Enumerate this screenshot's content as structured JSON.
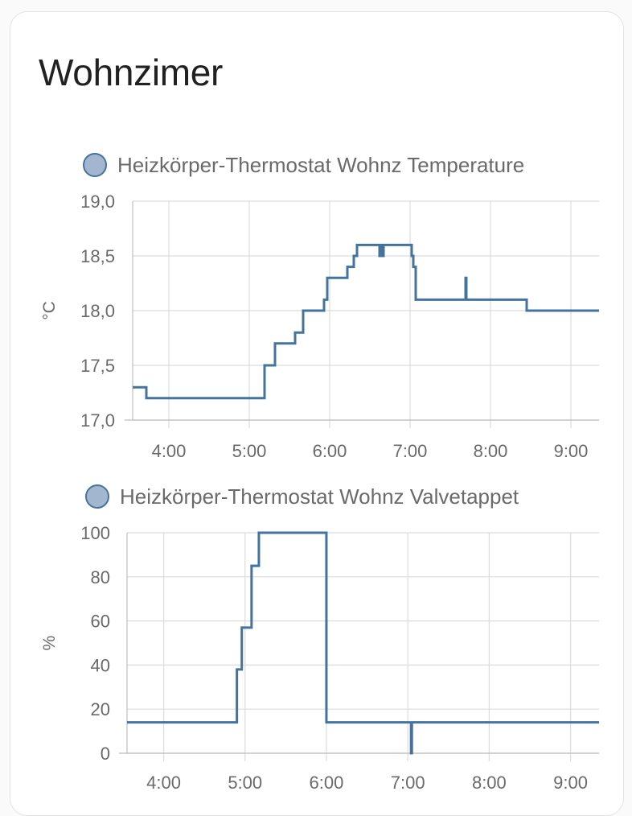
{
  "card": {
    "title": "Wohnzimer"
  },
  "colors": {
    "series": "#44739e",
    "legend_fill": "#a2b7cf",
    "grid": "#dcdcdc"
  },
  "chart_data": [
    {
      "type": "line",
      "step": true,
      "legend": "Heizkörper-Thermostat Wohnz Temperature",
      "ylabel": "°C",
      "ylim": [
        17.0,
        19.0
      ],
      "yticks": [
        17.0,
        17.5,
        18.0,
        18.5,
        19.0
      ],
      "ytick_labels": [
        "17,0",
        "17,5",
        "18,0",
        "18,5",
        "19,0"
      ],
      "xlim": [
        3.55,
        9.35
      ],
      "xticks": [
        4,
        5,
        6,
        7,
        8,
        9
      ],
      "xtick_labels": [
        "4:00",
        "5:00",
        "6:00",
        "7:00",
        "8:00",
        "9:00"
      ],
      "series": [
        {
          "x": [
            3.55,
            3.72,
            5.19,
            5.32,
            5.57,
            5.67,
            5.93,
            5.97,
            6.22,
            6.3,
            6.34,
            6.62,
            6.63,
            6.66,
            6.67,
            7.02,
            7.04,
            7.07,
            7.69,
            7.7,
            8.45,
            9.35
          ],
          "y": [
            17.3,
            17.2,
            17.5,
            17.7,
            17.8,
            18.0,
            18.1,
            18.3,
            18.4,
            18.5,
            18.6,
            18.5,
            18.6,
            18.5,
            18.6,
            18.5,
            18.4,
            18.1,
            18.3,
            18.1,
            18.0,
            18.0
          ]
        }
      ]
    },
    {
      "type": "line",
      "step": true,
      "legend": "Heizkörper-Thermostat Wohnz Valvetappet",
      "ylabel": "%",
      "ylim": [
        0,
        100
      ],
      "yticks": [
        0,
        20,
        40,
        60,
        80,
        100
      ],
      "ytick_labels": [
        "0",
        "20",
        "40",
        "60",
        "80",
        "100"
      ],
      "xlim": [
        3.55,
        9.35
      ],
      "xticks": [
        4,
        5,
        6,
        7,
        8,
        9
      ],
      "xtick_labels": [
        "4:00",
        "5:00",
        "6:00",
        "7:00",
        "8:00",
        "9:00"
      ],
      "series": [
        {
          "x": [
            3.55,
            4.9,
            4.96,
            5.08,
            5.17,
            6.0,
            7.04,
            7.05,
            9.35
          ],
          "y": [
            14,
            38,
            57,
            85,
            100,
            14,
            0,
            14,
            14
          ]
        }
      ]
    }
  ]
}
